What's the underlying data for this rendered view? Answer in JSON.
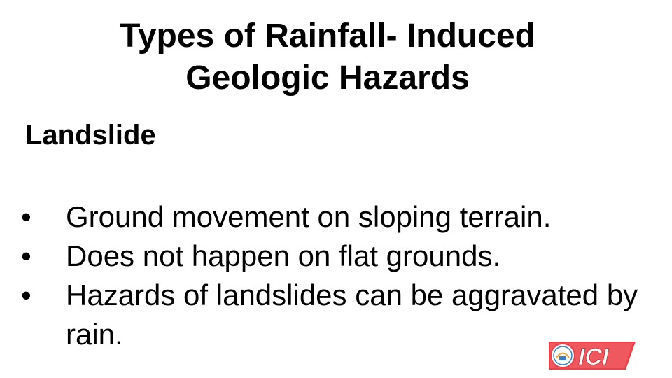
{
  "slide": {
    "title_line1": "Types of Rainfall- Induced",
    "title_line2": "Geologic Hazards",
    "subtitle": "Landslide",
    "bullet_symbol": "•",
    "bullets": [
      "Ground movement on sloping terrain.",
      "Does not happen on flat grounds.",
      "Hazards of landslides can be aggravated by rain."
    ]
  },
  "logo": {
    "text": "ICI",
    "colors": {
      "red": "#e8424a",
      "blue": "#3a7fc4",
      "orange": "#f2a33a"
    }
  }
}
